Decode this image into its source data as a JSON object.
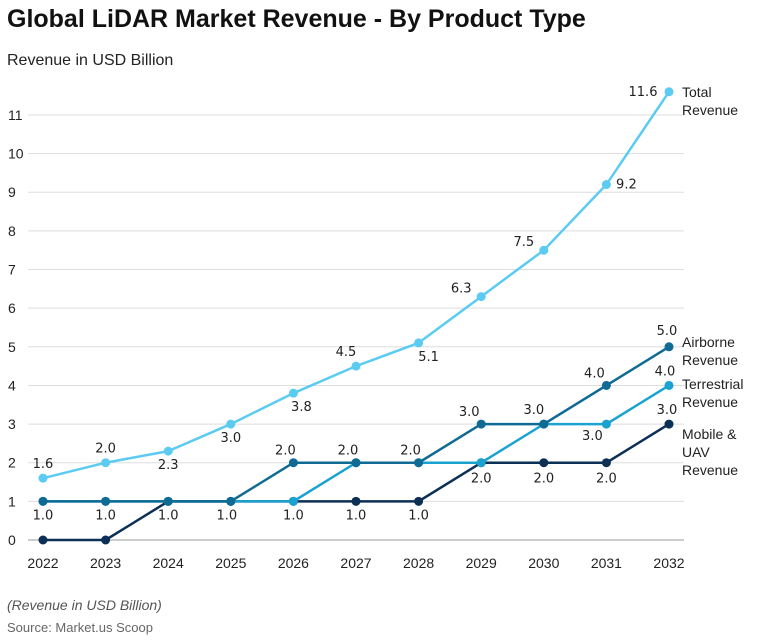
{
  "title": "Global LiDAR Market Revenue - By Product Type",
  "subtitle": "Revenue in USD Billion",
  "note": "(Revenue in USD Billion)",
  "source": "Source: Market.us Scoop",
  "chart_data": {
    "type": "line",
    "title": "Global LiDAR Market Revenue - By Product Type",
    "ylabel": "Revenue in USD Billion",
    "x": [
      2022,
      2023,
      2024,
      2025,
      2026,
      2027,
      2028,
      2029,
      2030,
      2031,
      2032
    ],
    "ylim": [
      0,
      11
    ],
    "yticks": [
      0,
      1,
      2,
      3,
      4,
      5,
      6,
      7,
      8,
      9,
      10,
      11
    ],
    "grid": true,
    "legend": "right, end-of-line labels",
    "series": [
      {
        "name": "Total Revenue",
        "color": "#5ccbf2",
        "values": [
          1.6,
          2.0,
          2.3,
          3.0,
          3.8,
          4.5,
          5.1,
          6.3,
          7.5,
          9.2,
          11.6
        ]
      },
      {
        "name": "Airborne Revenue",
        "color": "#0f6a94",
        "values": [
          1.0,
          1.0,
          1.0,
          1.0,
          2.0,
          2.0,
          2.0,
          3.0,
          3.0,
          4.0,
          5.0
        ]
      },
      {
        "name": "Terrestrial Revenue",
        "color": "#1aa3d1",
        "values": [
          1.0,
          1.0,
          1.0,
          1.0,
          1.0,
          2.0,
          2.0,
          2.0,
          3.0,
          3.0,
          4.0
        ]
      },
      {
        "name": "Mobile & UAV Revenue",
        "color": "#0b2f55",
        "values": [
          0,
          0,
          1.0,
          1.0,
          1.0,
          1.0,
          1.0,
          2.0,
          2.0,
          2.0,
          3.0
        ]
      }
    ]
  }
}
